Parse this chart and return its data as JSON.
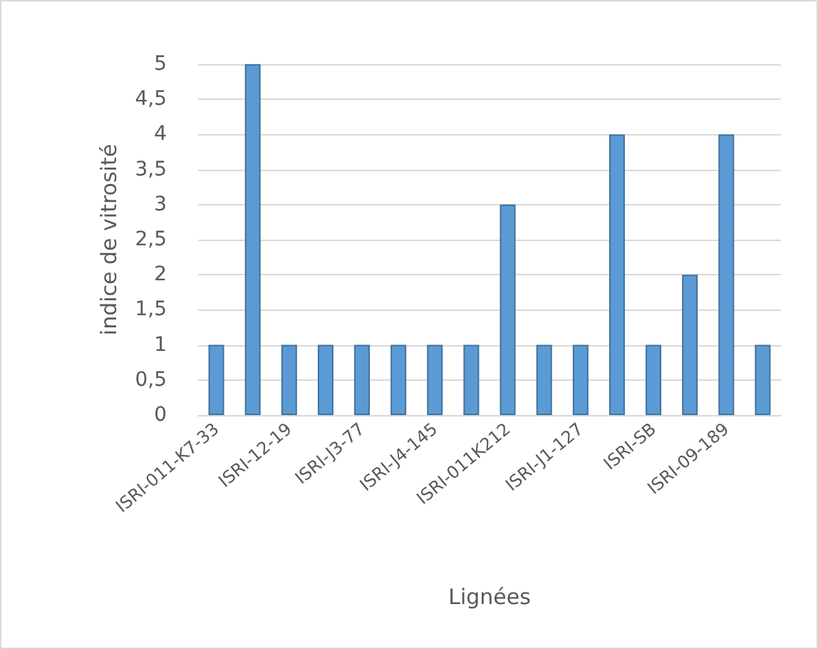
{
  "chart_data": {
    "type": "bar",
    "ylabel": "indice de vitrosité",
    "xlabel": "Lignées",
    "categories": [
      "ISRI-011-K7-33",
      null,
      "ISRI-12-19",
      null,
      "ISRI-J3-77",
      null,
      "ISRI-J4-145",
      null,
      "ISRI-011K212",
      null,
      "ISRI-J1-127",
      null,
      "ISRI-SB",
      null,
      "ISRI-09-189",
      null
    ],
    "values": [
      1,
      5,
      1,
      1,
      1,
      1,
      1,
      1,
      3,
      1,
      1,
      4,
      1,
      2,
      4,
      1
    ],
    "color": "#5b9bd5",
    "ylim": [
      0,
      5
    ],
    "yticks": [
      0,
      {
        "value": 0.5,
        "label": "0,5"
      },
      1,
      {
        "value": 1.5,
        "label": "1,5"
      },
      2,
      {
        "value": 2.5,
        "label": "2,5"
      },
      3,
      {
        "value": 3.5,
        "label": "3,5"
      },
      4,
      {
        "value": 4.5,
        "label": "4,5"
      },
      5
    ],
    "grid": "y"
  }
}
